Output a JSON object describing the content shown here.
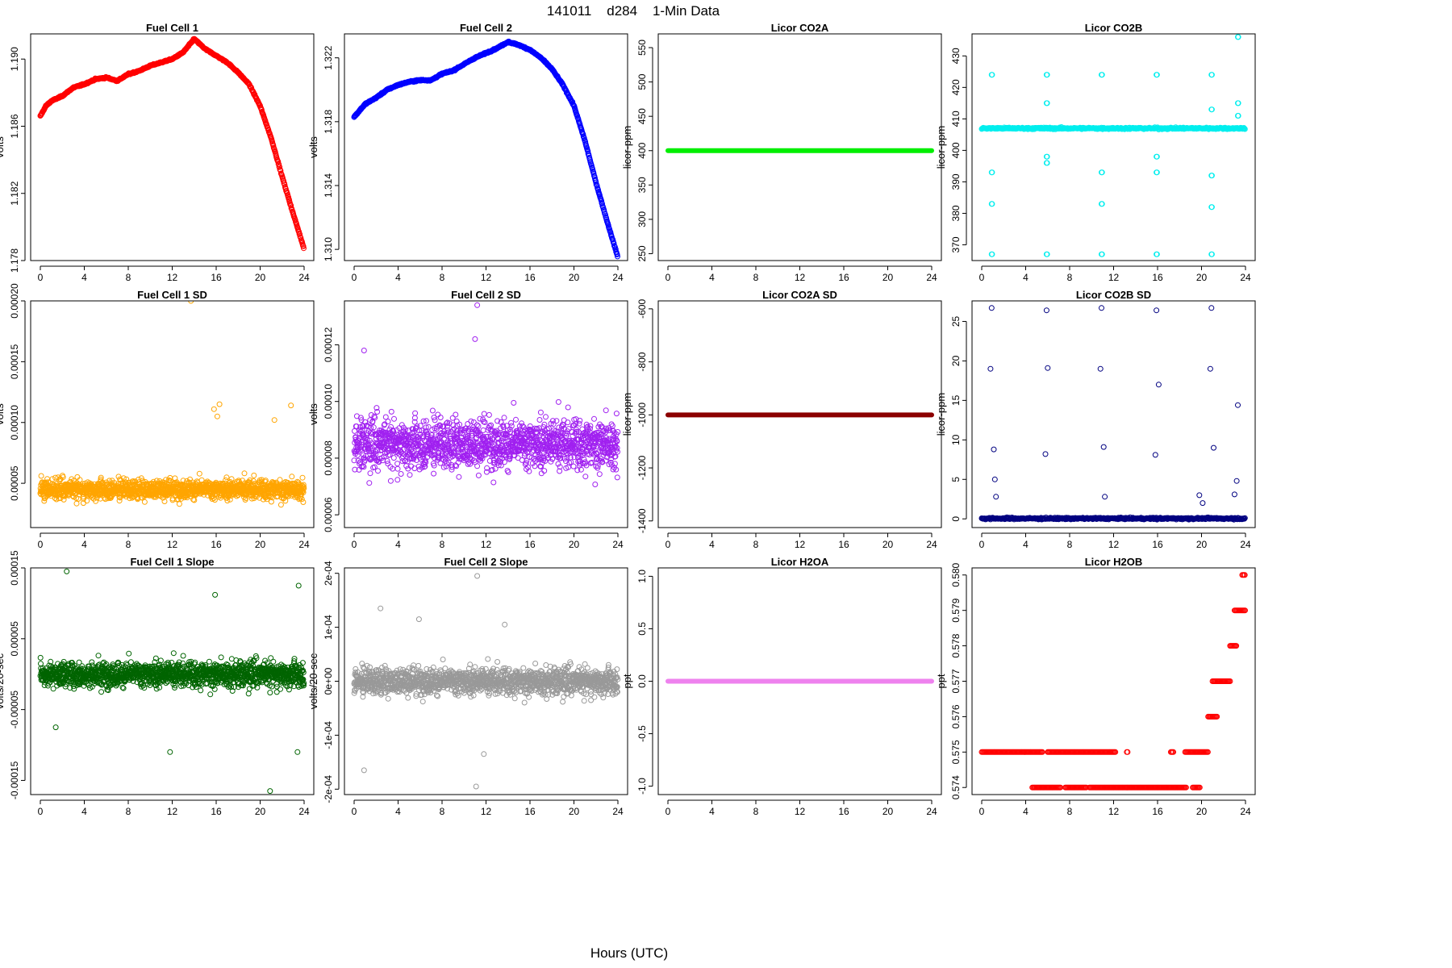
{
  "page": {
    "title": "141011    d284    1-Min Data",
    "xlabel": "Hours (UTC)"
  },
  "chart_data": [
    {
      "type": "line",
      "title": "Fuel Cell 1",
      "ylabel": "volts",
      "color": "#ff0000",
      "xlim": [
        0,
        24
      ],
      "ylim": [
        1.178,
        1.1915
      ],
      "xticks": [
        0,
        4,
        8,
        12,
        16,
        20,
        24
      ],
      "yticks": [
        1.178,
        1.182,
        1.186,
        1.19
      ],
      "yticklabels": [
        "1.178",
        "1.182",
        "1.186",
        "1.190"
      ],
      "x": [
        0,
        0.5,
        1,
        2,
        3,
        4,
        5,
        6,
        7,
        8,
        9,
        10,
        11,
        12,
        13,
        14,
        15,
        16,
        17,
        18,
        19,
        20,
        21,
        22,
        23,
        24
      ],
      "y": [
        1.1866,
        1.1872,
        1.1875,
        1.1878,
        1.1883,
        1.1885,
        1.1888,
        1.1889,
        1.1887,
        1.1891,
        1.1893,
        1.1896,
        1.1898,
        1.19,
        1.1904,
        1.1912,
        1.1906,
        1.1902,
        1.1898,
        1.1892,
        1.1885,
        1.1872,
        1.1853,
        1.183,
        1.1808,
        1.1787
      ]
    },
    {
      "type": "line",
      "title": "Fuel Cell 2",
      "ylabel": "volts",
      "color": "#0000ff",
      "xlim": [
        0,
        24
      ],
      "ylim": [
        1.3093,
        1.3235
      ],
      "xticks": [
        0,
        4,
        8,
        12,
        16,
        20,
        24
      ],
      "yticks": [
        1.31,
        1.314,
        1.318,
        1.322
      ],
      "yticklabels": [
        "1.310",
        "1.314",
        "1.318",
        "1.322"
      ],
      "x": [
        0,
        0.5,
        1,
        2,
        3,
        4,
        5,
        6,
        7,
        8,
        9,
        10,
        11,
        12,
        13,
        14,
        15,
        16,
        17,
        18,
        19,
        20,
        21,
        22,
        23,
        24
      ],
      "y": [
        1.3183,
        1.3187,
        1.3191,
        1.3195,
        1.32,
        1.3203,
        1.3205,
        1.3206,
        1.3206,
        1.321,
        1.3212,
        1.3216,
        1.322,
        1.3223,
        1.3226,
        1.323,
        1.3228,
        1.3225,
        1.322,
        1.3213,
        1.3203,
        1.319,
        1.3168,
        1.3142,
        1.3118,
        1.3095
      ]
    },
    {
      "type": "scatter",
      "title": "Licor CO2A",
      "ylabel": "licor-ppm",
      "color": "#00ee00",
      "xlim": [
        0,
        24
      ],
      "ylim": [
        240,
        570
      ],
      "xticks": [
        0,
        4,
        8,
        12,
        16,
        20,
        24
      ],
      "yticks": [
        250,
        300,
        350,
        400,
        450,
        500,
        550
      ],
      "yticklabels": [
        "250",
        "300",
        "350",
        "400",
        "450",
        "500",
        "550"
      ],
      "constant": 400
    },
    {
      "type": "scatter",
      "title": "Licor CO2B",
      "ylabel": "licor-ppm",
      "color": "#00eeee",
      "xlim": [
        0,
        24
      ],
      "ylim": [
        365,
        437
      ],
      "xticks": [
        0,
        4,
        8,
        12,
        16,
        20,
        24
      ],
      "yticks": [
        370,
        380,
        390,
        400,
        410,
        420,
        430
      ],
      "yticklabels": [
        "370",
        "380",
        "390",
        "400",
        "410",
        "420",
        "430"
      ],
      "baseline": 407,
      "spikes": [
        {
          "x": 0.9,
          "values": [
            424,
            367,
            383,
            393
          ]
        },
        {
          "x": 5.9,
          "values": [
            424,
            367,
            396,
            398,
            415
          ]
        },
        {
          "x": 10.9,
          "values": [
            424,
            367,
            383,
            393
          ]
        },
        {
          "x": 15.9,
          "values": [
            424,
            367,
            393,
            398
          ]
        },
        {
          "x": 20.9,
          "values": [
            424,
            367,
            382,
            392,
            413
          ]
        },
        {
          "x": 23.3,
          "values": [
            436,
            415,
            411
          ]
        }
      ]
    },
    {
      "type": "scatter",
      "title": "Fuel Cell 1 SD",
      "ylabel": "volts",
      "color": "#ffa500",
      "xlim": [
        0,
        24
      ],
      "ylim": [
        1.36e-05,
        0.0002
      ],
      "xticks": [
        0,
        4,
        8,
        12,
        16,
        20,
        24
      ],
      "yticks": [
        5e-05,
        0.0001,
        0.00015,
        0.0002
      ],
      "yticklabels": [
        "0.00005",
        "0.00010",
        "0.00015",
        "0.00020"
      ],
      "mean": 4.5e-05,
      "spread": 8e-06,
      "outliers": [
        {
          "x": 13.7,
          "y": 0.0002
        },
        {
          "x": 16.3,
          "y": 0.000115
        },
        {
          "x": 15.8,
          "y": 0.000111
        },
        {
          "x": 16.1,
          "y": 0.000105
        },
        {
          "x": 22.8,
          "y": 0.000114
        },
        {
          "x": 21.3,
          "y": 0.000102
        }
      ]
    },
    {
      "type": "scatter",
      "title": "Fuel Cell 2 SD",
      "ylabel": "volts",
      "color": "#a020f0",
      "xlim": [
        0,
        24
      ],
      "ylim": [
        5.55e-05,
        0.0001355
      ],
      "xticks": [
        0,
        4,
        8,
        12,
        16,
        20,
        24
      ],
      "yticks": [
        6e-05,
        8e-05,
        0.0001,
        0.00012
      ],
      "yticklabels": [
        "0.00006",
        "0.00008",
        "0.00010",
        "0.00012"
      ],
      "mean": 8.5e-05,
      "spread": 9e-06,
      "outliers": [
        {
          "x": 11.2,
          "y": 0.000134
        },
        {
          "x": 0.9,
          "y": 0.000118
        },
        {
          "x": 11.0,
          "y": 0.000122
        }
      ]
    },
    {
      "type": "scatter",
      "title": "Licor CO2A SD",
      "ylabel": "licor-ppm",
      "color": "#8b0000",
      "xlim": [
        0,
        24
      ],
      "ylim": [
        -1425,
        -570
      ],
      "xticks": [
        0,
        4,
        8,
        12,
        16,
        20,
        24
      ],
      "yticks": [
        -1400,
        -1200,
        -1000,
        -800,
        -600
      ],
      "yticklabels": [
        "-1400",
        "-1200",
        "-1000",
        "-800",
        "-600"
      ],
      "constant": -1000
    },
    {
      "type": "scatter",
      "title": "Licor CO2B SD",
      "ylabel": "licor-ppm",
      "color": "#000080",
      "xlim": [
        0,
        24
      ],
      "ylim": [
        -1.1,
        27.6
      ],
      "xticks": [
        0,
        4,
        8,
        12,
        16,
        20,
        24
      ],
      "yticks": [
        0,
        5,
        10,
        15,
        20,
        25
      ],
      "yticklabels": [
        "0",
        "5",
        "10",
        "15",
        "20",
        "25"
      ],
      "baseline": 0.05,
      "outliers": [
        {
          "x": 0.9,
          "y": 26.7
        },
        {
          "x": 0.8,
          "y": 19
        },
        {
          "x": 1.1,
          "y": 8.8
        },
        {
          "x": 1.2,
          "y": 5
        },
        {
          "x": 1.3,
          "y": 2.8
        },
        {
          "x": 5.9,
          "y": 26.4
        },
        {
          "x": 6.0,
          "y": 19.1
        },
        {
          "x": 5.8,
          "y": 8.2
        },
        {
          "x": 10.9,
          "y": 26.7
        },
        {
          "x": 10.8,
          "y": 19
        },
        {
          "x": 11.1,
          "y": 9.1
        },
        {
          "x": 11.2,
          "y": 2.8
        },
        {
          "x": 15.9,
          "y": 26.4
        },
        {
          "x": 16.1,
          "y": 17
        },
        {
          "x": 15.8,
          "y": 8.1
        },
        {
          "x": 20.9,
          "y": 26.7
        },
        {
          "x": 20.8,
          "y": 19
        },
        {
          "x": 21.1,
          "y": 9
        },
        {
          "x": 23.3,
          "y": 14.4
        },
        {
          "x": 23.2,
          "y": 4.8
        },
        {
          "x": 23.0,
          "y": 3.1
        },
        {
          "x": 19.8,
          "y": 3
        },
        {
          "x": 20.1,
          "y": 2
        }
      ]
    },
    {
      "type": "scatter",
      "title": "Fuel Cell 1 Slope",
      "ylabel": "volts/20-sec",
      "color": "#006400",
      "xlim": [
        0,
        24
      ],
      "ylim": [
        -0.00017,
        0.00015
      ],
      "xticks": [
        0,
        4,
        8,
        12,
        16,
        20,
        24
      ],
      "yticks": [
        -0.00015,
        -5e-05,
        5e-05,
        0.00015
      ],
      "yticklabels": [
        "-0.00015",
        "-0.00005",
        "0.00005",
        "0.00015"
      ],
      "mean": 0.0,
      "spread": 1.8e-05,
      "outliers": [
        {
          "x": 2.4,
          "y": 0.000145
        },
        {
          "x": 20.9,
          "y": -0.000165
        },
        {
          "x": 11.8,
          "y": -0.00011
        },
        {
          "x": 23.4,
          "y": -0.00011
        },
        {
          "x": 23.5,
          "y": 0.000125
        },
        {
          "x": 15.9,
          "y": 0.000112
        },
        {
          "x": 1.4,
          "y": -7.5e-05
        }
      ]
    },
    {
      "type": "scatter",
      "title": "Fuel Cell 2 Slope",
      "ylabel": "volts/20-sec",
      "color": "#999999",
      "xlim": [
        0,
        24
      ],
      "ylim": [
        -0.00021,
        0.00021
      ],
      "xticks": [
        0,
        4,
        8,
        12,
        16,
        20,
        24
      ],
      "yticks": [
        -0.0002,
        -0.0001,
        0.0,
        0.0001,
        0.0002
      ],
      "yticklabels": [
        "-2e-04",
        "-1e-04",
        "0e+00",
        "1e-04",
        "2e-04"
      ],
      "mean": 0.0,
      "spread": 2.5e-05,
      "outliers": [
        {
          "x": 11.2,
          "y": 0.000195
        },
        {
          "x": 11.1,
          "y": -0.000195
        },
        {
          "x": 0.9,
          "y": -0.000165
        },
        {
          "x": 2.4,
          "y": 0.000135
        },
        {
          "x": 11.8,
          "y": -0.000135
        },
        {
          "x": 5.9,
          "y": 0.000115
        },
        {
          "x": 13.7,
          "y": 0.000105
        }
      ]
    },
    {
      "type": "scatter",
      "title": "Licor H2OA",
      "ylabel": "ppt",
      "color": "#ee82ee",
      "xlim": [
        0,
        24
      ],
      "ylim": [
        -1.08,
        1.08
      ],
      "xticks": [
        0,
        4,
        8,
        12,
        16,
        20,
        24
      ],
      "yticks": [
        -1.0,
        -0.5,
        0.0,
        0.5,
        1.0
      ],
      "yticklabels": [
        "-1.0",
        "-0.5",
        "0.0",
        "0.5",
        "1.0"
      ],
      "constant": 0.0
    },
    {
      "type": "scatter",
      "title": "Licor H2OB",
      "ylabel": "ppt",
      "color": "#ff0000",
      "xlim": [
        0,
        24
      ],
      "ylim": [
        0.5738,
        0.5802
      ],
      "xticks": [
        0,
        4,
        8,
        12,
        16,
        20,
        24
      ],
      "yticks": [
        0.574,
        0.575,
        0.576,
        0.577,
        0.578,
        0.579,
        0.58
      ],
      "yticklabels": [
        "0.574",
        "0.575",
        "0.576",
        "0.577",
        "0.578",
        "0.579",
        "0.580"
      ],
      "segments": [
        {
          "x0": 0.0,
          "x1": 5.6,
          "y": 0.575
        },
        {
          "x0": 6.0,
          "x1": 12.2,
          "y": 0.575
        },
        {
          "x0": 13.2,
          "x1": 13.3,
          "y": 0.575
        },
        {
          "x0": 17.2,
          "x1": 17.5,
          "y": 0.575
        },
        {
          "x0": 18.5,
          "x1": 20.6,
          "y": 0.575
        },
        {
          "x0": 4.6,
          "x1": 7.2,
          "y": 0.574
        },
        {
          "x0": 7.6,
          "x1": 9.6,
          "y": 0.574
        },
        {
          "x0": 9.8,
          "x1": 18.6,
          "y": 0.574
        },
        {
          "x0": 19.2,
          "x1": 19.9,
          "y": 0.574
        },
        {
          "x0": 20.6,
          "x1": 21.4,
          "y": 0.576
        },
        {
          "x0": 21.0,
          "x1": 22.6,
          "y": 0.577
        },
        {
          "x0": 22.6,
          "x1": 23.2,
          "y": 0.578
        },
        {
          "x0": 23.0,
          "x1": 24.0,
          "y": 0.579
        },
        {
          "x0": 23.7,
          "x1": 24.0,
          "y": 0.58
        }
      ]
    }
  ]
}
